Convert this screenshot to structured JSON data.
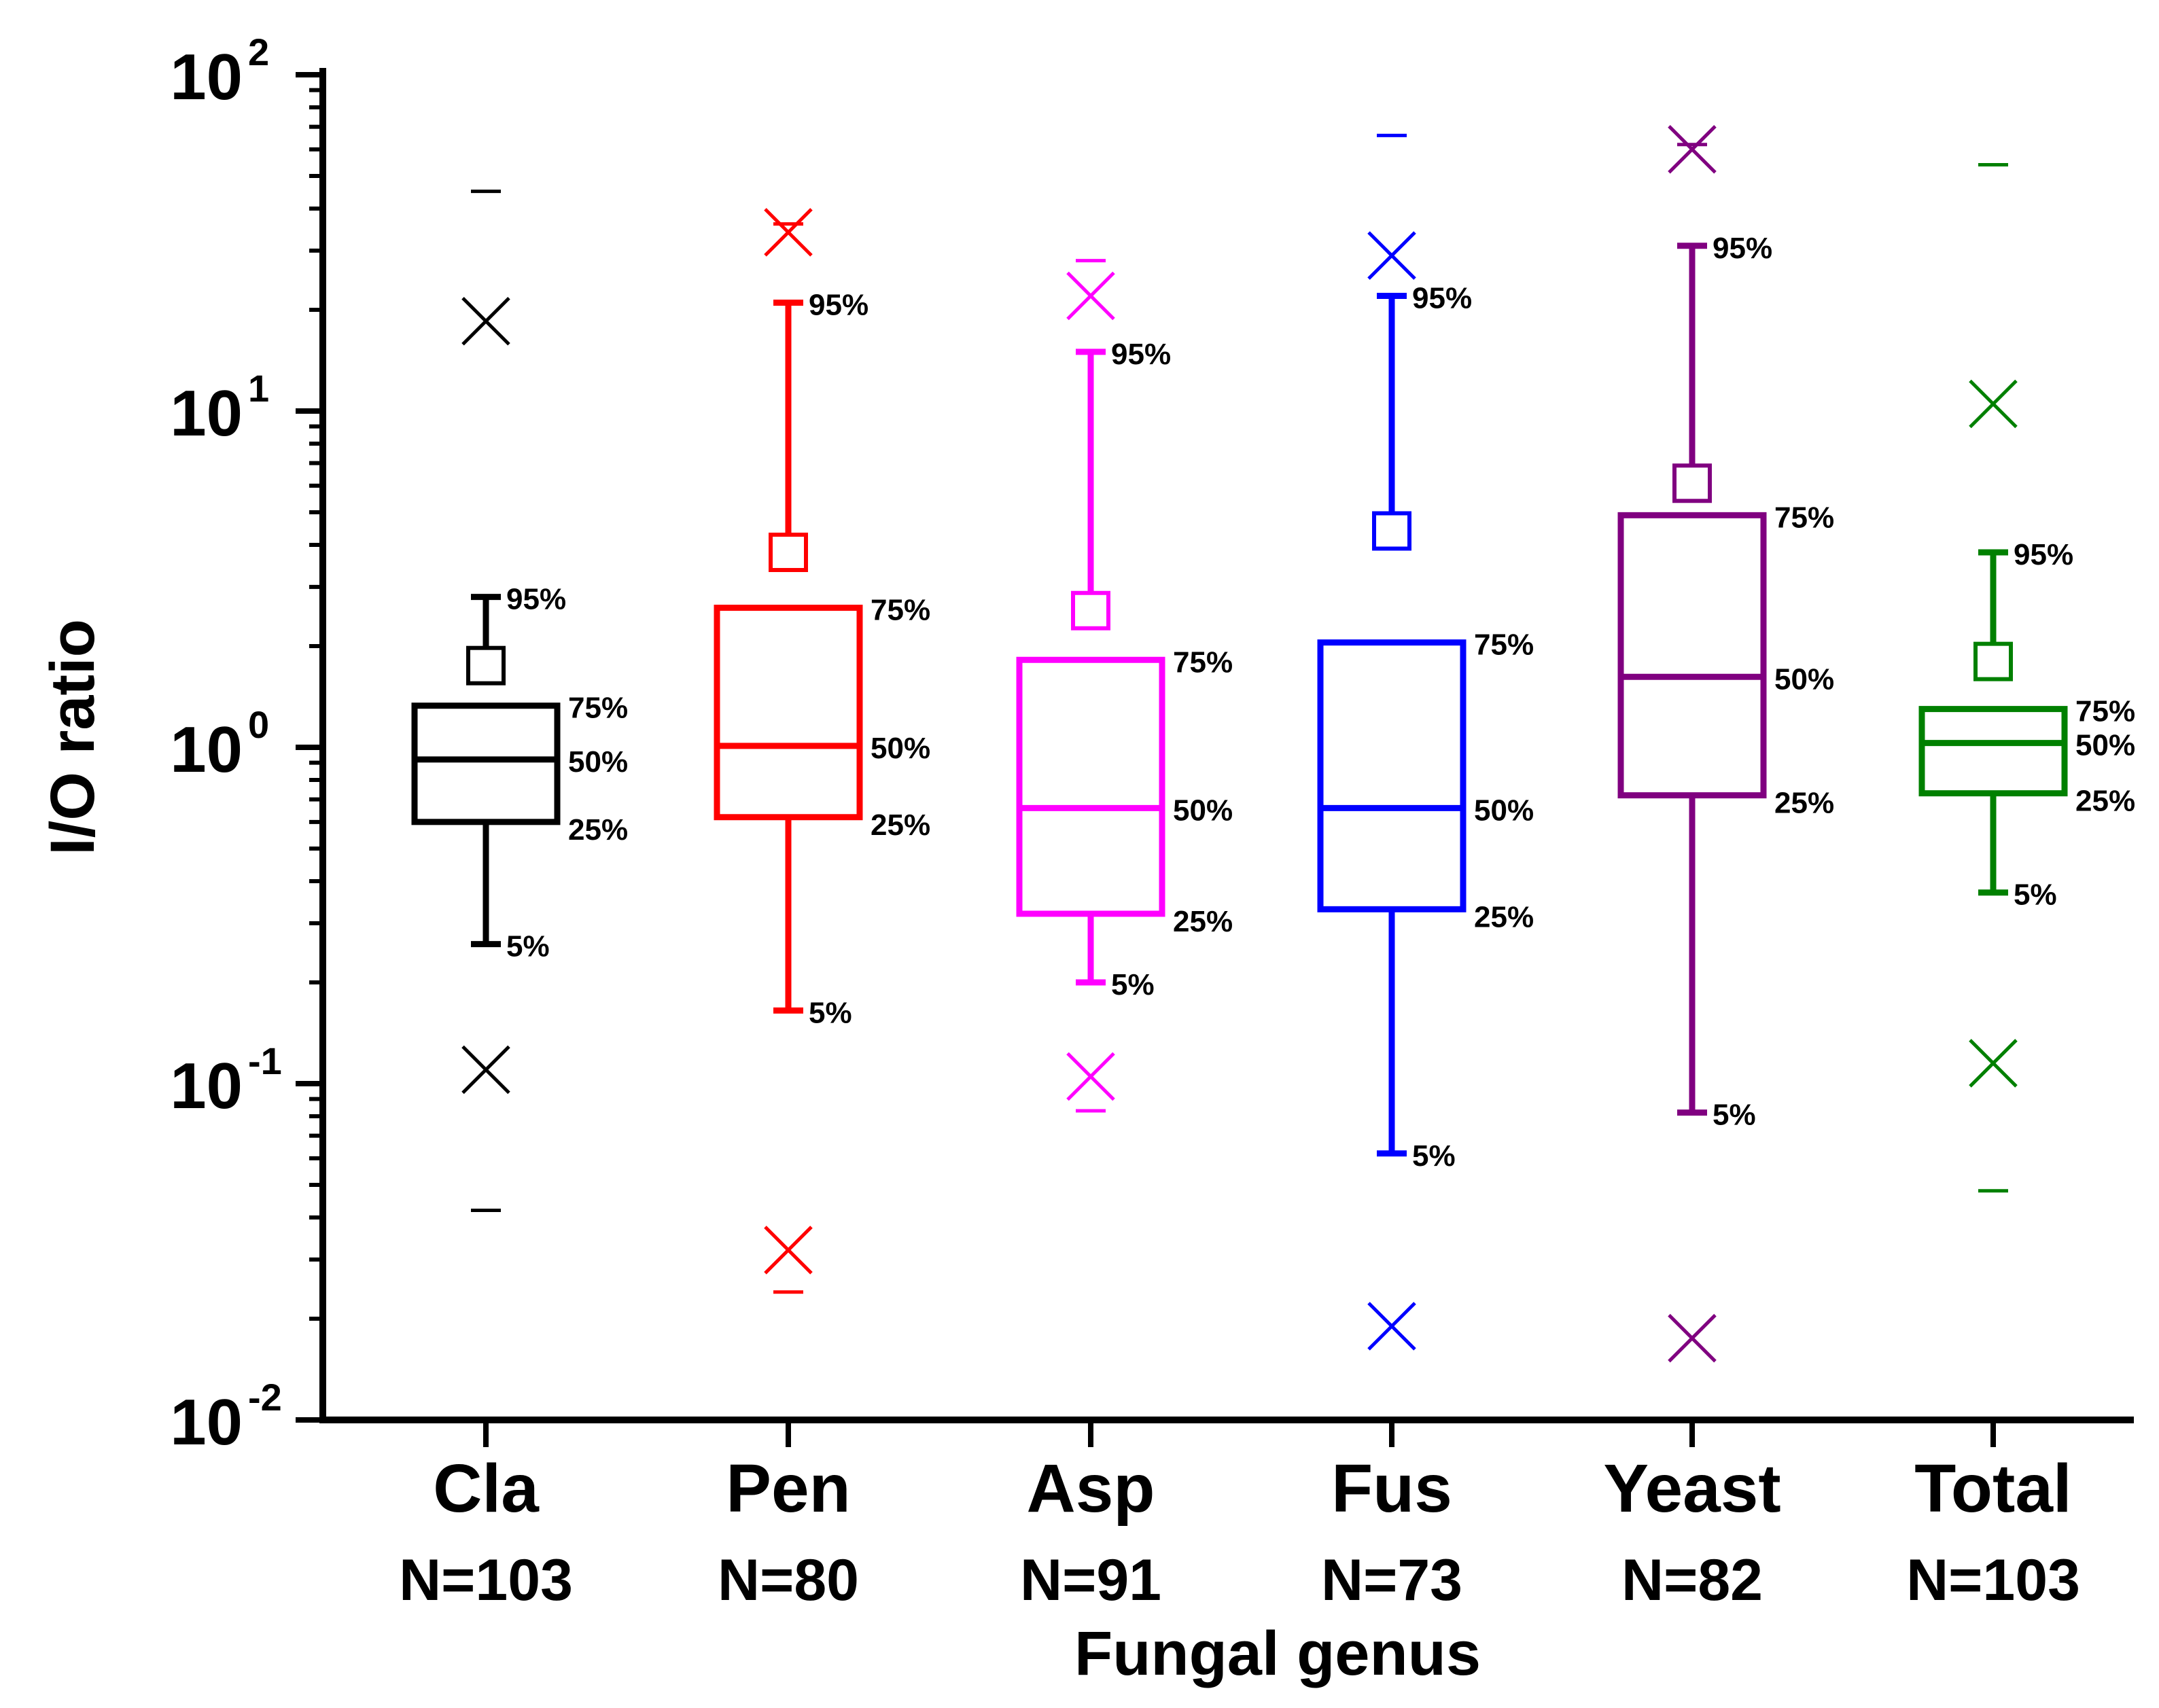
{
  "chart_data": {
    "type": "box",
    "title": "",
    "xlabel": "Fungal genus",
    "ylabel": "I/O ratio",
    "yscale": "log",
    "ylim": [
      0.01,
      100
    ],
    "yticks": [
      {
        "value": 0.01,
        "base": "10",
        "exp": "-2"
      },
      {
        "value": 0.1,
        "base": "10",
        "exp": "-1"
      },
      {
        "value": 1,
        "base": "10",
        "exp": "0"
      },
      {
        "value": 10,
        "base": "10",
        "exp": "1"
      },
      {
        "value": 100,
        "base": "10",
        "exp": "2"
      }
    ],
    "percentile_labels": {
      "p5": "5%",
      "p25": "25%",
      "p50": "50%",
      "p75": "75%",
      "p95": "95%"
    },
    "categories": [
      {
        "name": "Cla",
        "n_label": "N=103",
        "color": "#000000",
        "p5": 0.26,
        "p25": 0.6,
        "p50": 0.92,
        "p75": 1.33,
        "p95": 2.8,
        "mean": 1.75,
        "x_low": 0.11,
        "x_high": 18.5,
        "min": 0.042,
        "max": 45
      },
      {
        "name": "Pen",
        "n_label": "N=80",
        "color": "#ff0000",
        "p5": 0.165,
        "p25": 0.62,
        "p50": 1.01,
        "p75": 2.6,
        "p95": 21,
        "mean": 3.8,
        "x_low": 0.032,
        "x_high": 34,
        "min": 0.024,
        "max": 36
      },
      {
        "name": "Asp",
        "n_label": "N=91",
        "color": "#ff00ff",
        "p5": 0.2,
        "p25": 0.32,
        "p50": 0.66,
        "p75": 1.82,
        "p95": 15,
        "mean": 2.55,
        "x_low": 0.105,
        "x_high": 22,
        "min": 0.083,
        "max": 28
      },
      {
        "name": "Fus",
        "n_label": "N=73",
        "color": "#0000ff",
        "p5": 0.062,
        "p25": 0.33,
        "p50": 0.66,
        "p75": 2.05,
        "p95": 22,
        "mean": 4.4,
        "x_low": 0.019,
        "x_high": 29,
        "min": null,
        "max": 66
      },
      {
        "name": "Yeast",
        "n_label": "N=82",
        "color": "#800080",
        "p5": 0.082,
        "p25": 0.72,
        "p50": 1.62,
        "p75": 4.9,
        "p95": 31,
        "mean": 6.1,
        "x_low": 0.0175,
        "x_high": 60,
        "min": null,
        "max": 62
      },
      {
        "name": "Total",
        "n_label": "N=103",
        "color": "#008000",
        "p5": 0.37,
        "p25": 0.73,
        "p50": 1.03,
        "p75": 1.3,
        "p95": 3.8,
        "mean": 1.8,
        "x_low": 0.115,
        "x_high": 10.5,
        "min": 0.048,
        "max": 54
      }
    ]
  }
}
